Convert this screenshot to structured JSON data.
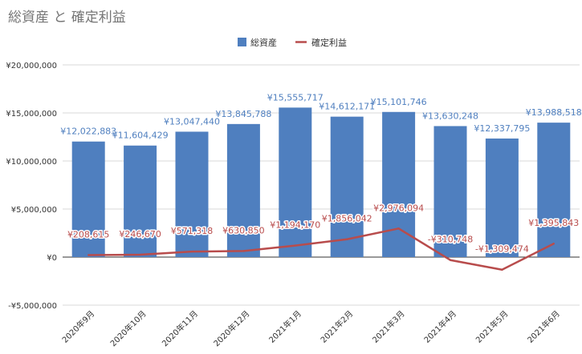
{
  "chart_data": {
    "type": "bar",
    "title": "総資産 と 確定利益",
    "categories": [
      "2020年9月",
      "2020年10月",
      "2020年11月",
      "2020年12月",
      "2021年1月",
      "2021年2月",
      "2021年3月",
      "2021年4月",
      "2021年5月",
      "2021年6月"
    ],
    "series": [
      {
        "name": "総資産",
        "type": "bar",
        "color": "#4f7fbf",
        "values": [
          12022883,
          11604429,
          13047440,
          13845788,
          15555717,
          14612171,
          15101746,
          13630248,
          12337795,
          13988518
        ],
        "labels": [
          "¥12,022,883",
          "¥11,604,429",
          "¥13,047,440",
          "¥13,845,788",
          "¥15,555,717",
          "¥14,612,171",
          "¥15,101,746",
          "¥13,630,248",
          "¥12,337,795",
          "¥13,988,518"
        ]
      },
      {
        "name": "確定利益",
        "type": "line",
        "color": "#b84c4c",
        "values": [
          208615,
          246670,
          571318,
          630850,
          1194170,
          1856042,
          2976094,
          -310748,
          -1309474,
          1395843
        ],
        "labels": [
          "¥208,615",
          "¥246,670",
          "¥571,318",
          "¥630,850",
          "¥1,194,170",
          "¥1,856,042",
          "¥2,976,094",
          "-¥310,748",
          "-¥1,309,474",
          "¥1,395,843"
        ]
      }
    ],
    "ylim": [
      -5000000,
      20000000
    ],
    "yticks": [
      20000000,
      15000000,
      10000000,
      5000000,
      0,
      -5000000
    ],
    "ytick_labels": [
      "¥20,000,000",
      "¥15,000,000",
      "¥10,000,000",
      "¥5,000,000",
      "¥0",
      "-¥5,000,000"
    ],
    "grid": true,
    "legend_position": "top"
  }
}
